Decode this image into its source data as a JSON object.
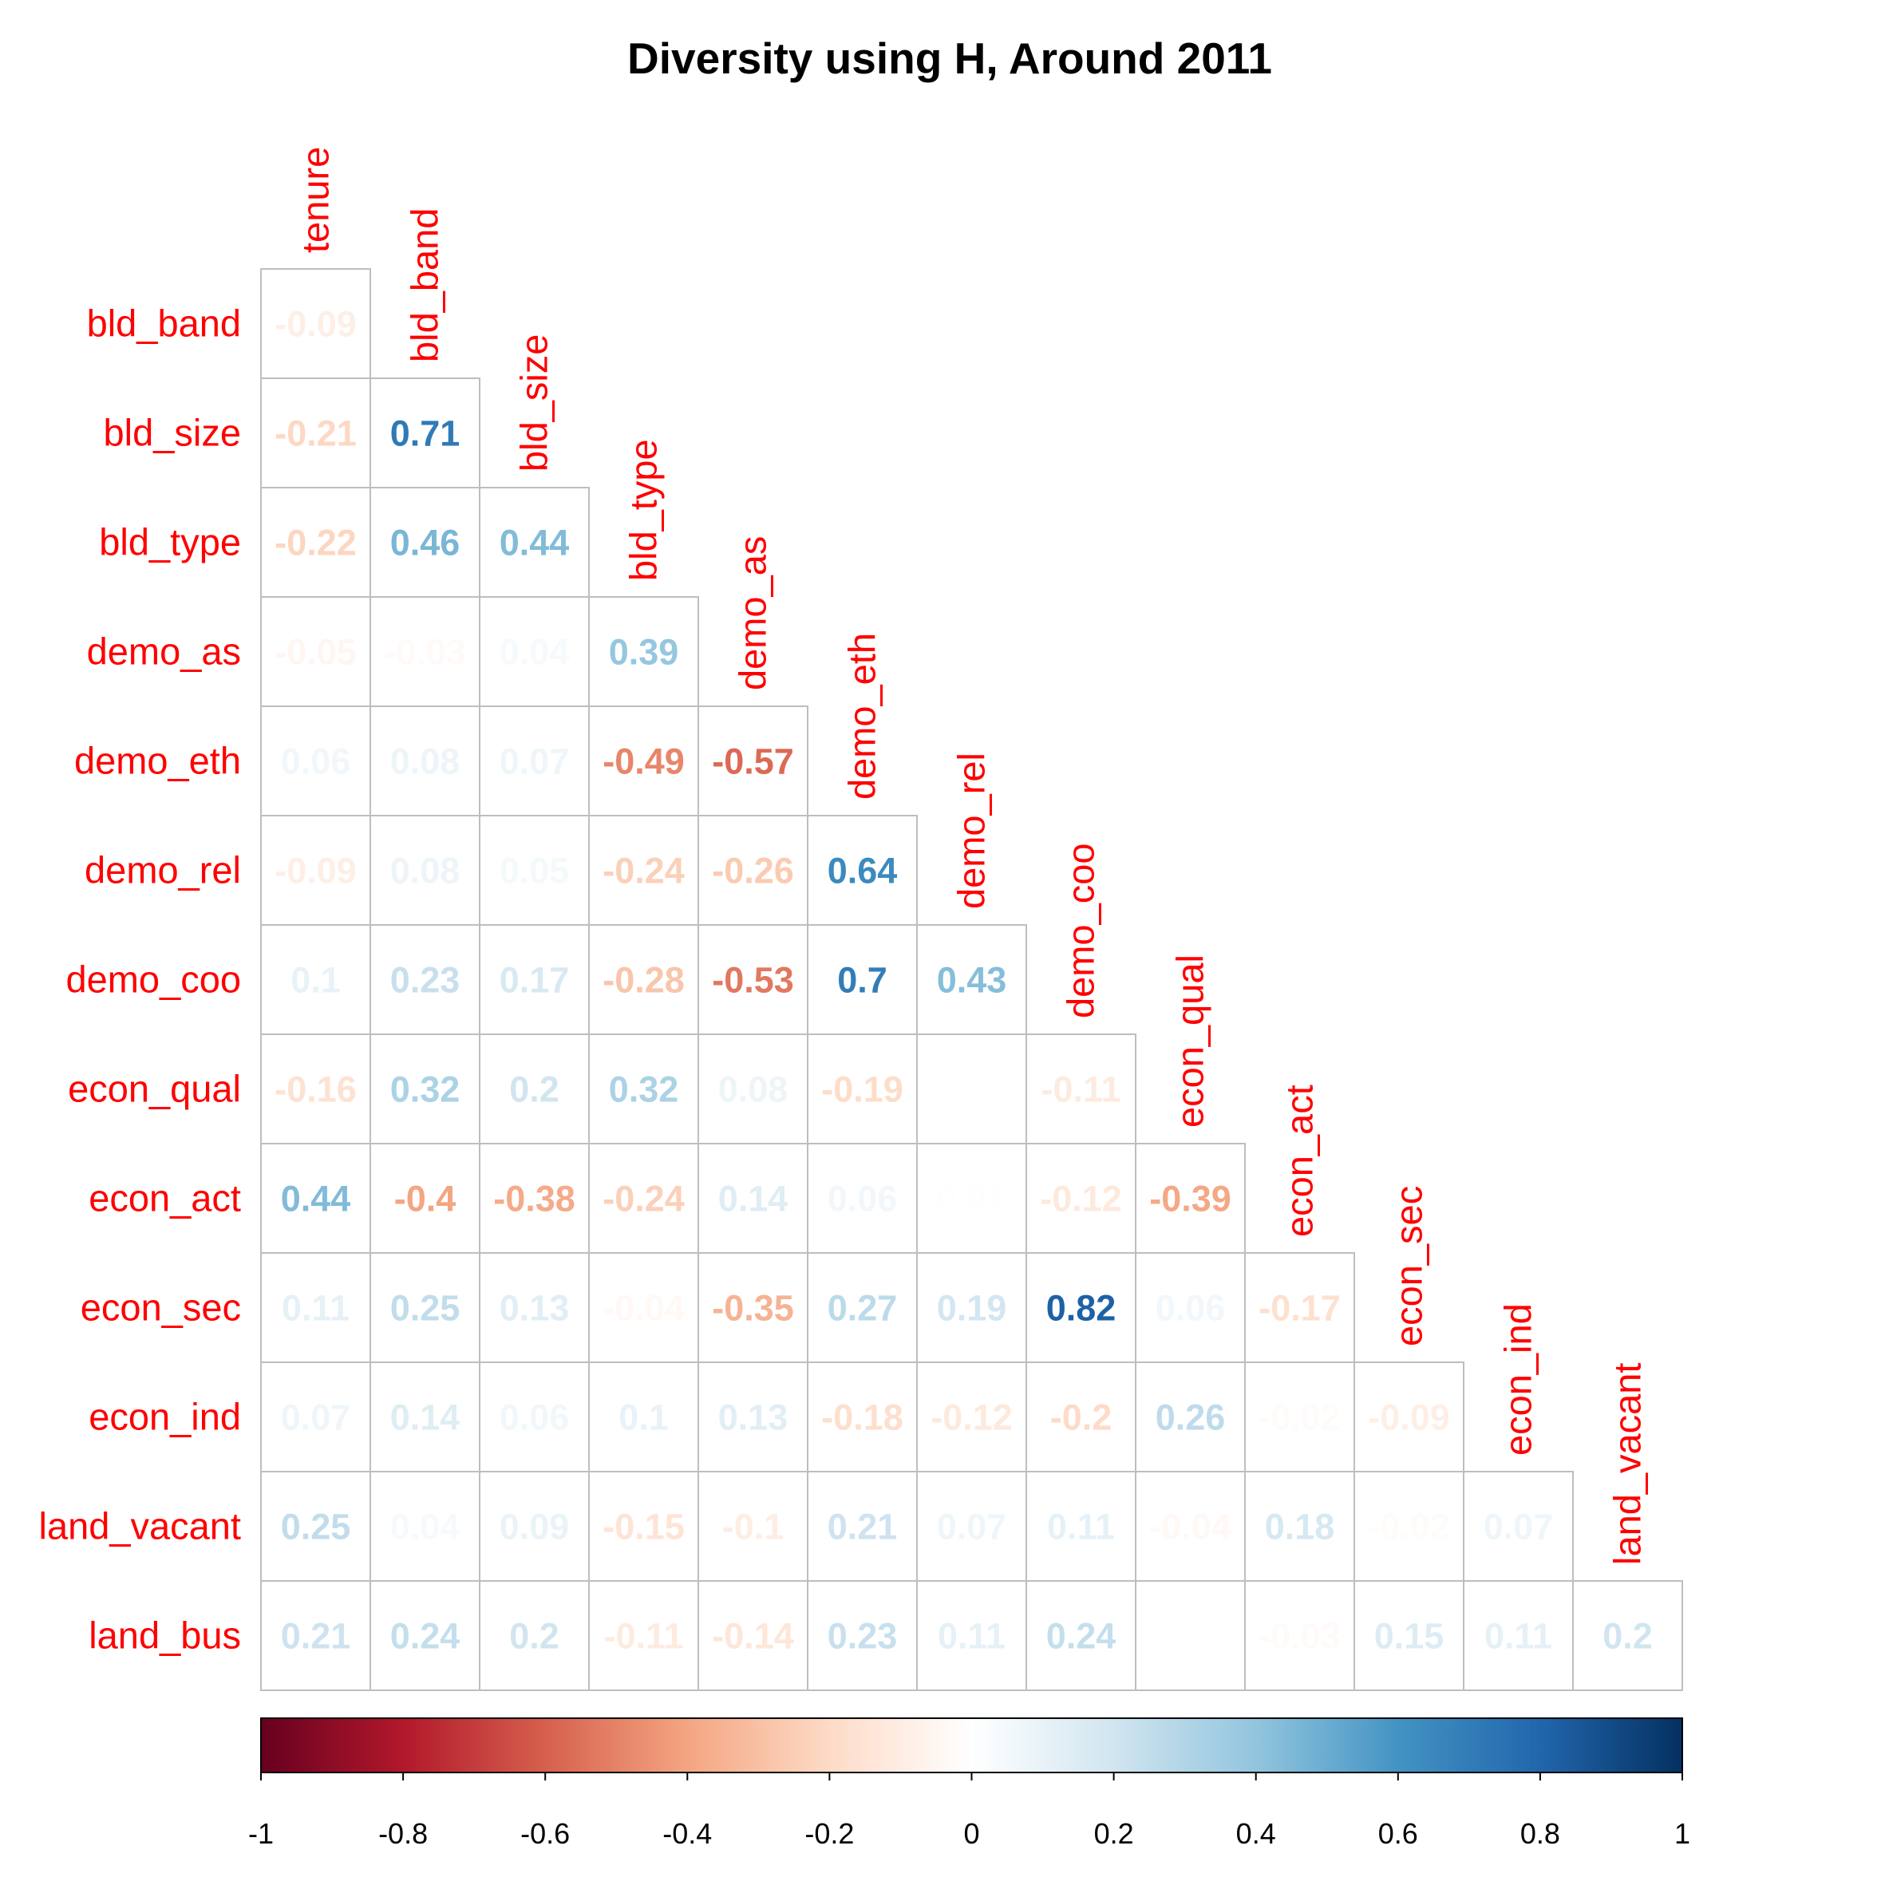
{
  "chart_data": {
    "type": "heatmap",
    "title": "Diversity using H, Around 2011",
    "columns": [
      "tenure",
      "bld_band",
      "bld_size",
      "bld_type",
      "demo_as",
      "demo_eth",
      "demo_rel",
      "demo_coo",
      "econ_qual",
      "econ_act",
      "econ_sec",
      "econ_ind",
      "land_vacant"
    ],
    "rows": [
      "bld_band",
      "bld_size",
      "bld_type",
      "demo_as",
      "demo_eth",
      "demo_rel",
      "demo_coo",
      "econ_qual",
      "econ_act",
      "econ_sec",
      "econ_ind",
      "land_vacant",
      "land_bus"
    ],
    "values": [
      [
        -0.09
      ],
      [
        -0.21,
        0.71
      ],
      [
        -0.22,
        0.46,
        0.44
      ],
      [
        -0.05,
        -0.03,
        0.04,
        0.39
      ],
      [
        0.06,
        0.08,
        0.07,
        -0.49,
        -0.57
      ],
      [
        -0.09,
        0.08,
        0.05,
        -0.24,
        -0.26,
        0.64
      ],
      [
        0.1,
        0.23,
        0.17,
        -0.28,
        -0.53,
        0.7,
        0.43
      ],
      [
        -0.16,
        0.32,
        0.2,
        0.32,
        0.08,
        -0.19,
        0,
        -0.11
      ],
      [
        0.44,
        -0.4,
        -0.38,
        -0.24,
        0.14,
        0.06,
        0.01,
        -0.12,
        -0.39
      ],
      [
        0.11,
        0.25,
        0.13,
        -0.04,
        -0.35,
        0.27,
        0.19,
        0.82,
        0.06,
        -0.17
      ],
      [
        0.07,
        0.14,
        0.06,
        0.1,
        0.13,
        -0.18,
        -0.12,
        -0.2,
        0.26,
        -0.02,
        -0.09
      ],
      [
        0.25,
        0.04,
        0.09,
        -0.15,
        -0.1,
        0.21,
        0.07,
        0.11,
        -0.04,
        0.18,
        -0.02,
        0.07
      ],
      [
        0.21,
        0.24,
        0.2,
        -0.11,
        -0.14,
        0.23,
        0.11,
        0.24,
        0,
        -0.03,
        0.15,
        0.11,
        0.2
      ]
    ],
    "colorbar": {
      "min": -1,
      "max": 1,
      "ticks": [
        "-1",
        "-0.8",
        "-0.6",
        "-0.4",
        "-0.2",
        "0",
        "0.2",
        "0.4",
        "0.6",
        "0.8",
        "1"
      ]
    },
    "label_color": "#FF0000",
    "grid_color": "#BEBEBE",
    "palette": [
      "#67001F",
      "#B2182B",
      "#D6604D",
      "#F4A582",
      "#FDDBC7",
      "#FFFFFF",
      "#D1E5F0",
      "#92C5DE",
      "#4393C3",
      "#2166AC",
      "#053061"
    ]
  }
}
